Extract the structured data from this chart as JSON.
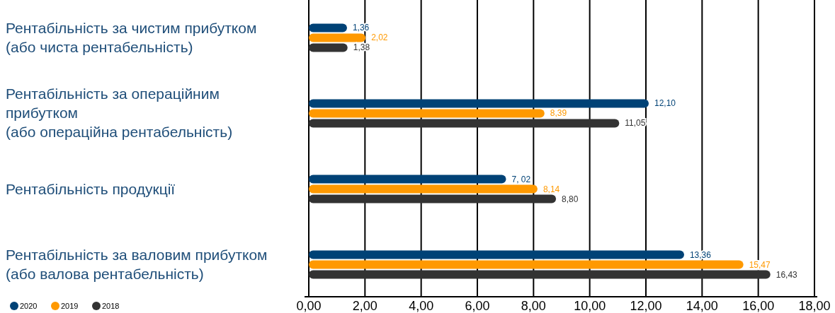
{
  "chart_data": {
    "type": "bar",
    "orientation": "horizontal",
    "categories": [
      "Рентабільність за чистим прибутком\n(або чиста рентабельність)",
      "Рентабільність за операційним\nприбутком\n(або операційна рентабельність)",
      "Рентабільність продукції",
      "Рентабільність за валовим прибутком\n(або валова рентабельність)"
    ],
    "series": [
      {
        "name": "2020",
        "color": "#004276",
        "values": [
          1.36,
          12.1,
          7.02,
          13.36
        ],
        "value_labels": [
          "1,36",
          "12,10",
          "7, 02",
          "13,36"
        ]
      },
      {
        "name": "2019",
        "color": "#ff9900",
        "values": [
          2.02,
          8.39,
          8.14,
          15.47
        ],
        "value_labels": [
          "2,02",
          "8,39",
          "8,14",
          "15,47"
        ]
      },
      {
        "name": "2018",
        "color": "#333333",
        "values": [
          1.38,
          11.05,
          8.8,
          16.43
        ],
        "value_labels": [
          "1,38",
          "11,05",
          "8,80",
          "16,43"
        ]
      }
    ],
    "xlim": [
      0,
      18
    ],
    "xticks": [
      {
        "value": 0,
        "label": "0,00"
      },
      {
        "value": 2,
        "label": "2,00"
      },
      {
        "value": 4,
        "label": "4,00"
      },
      {
        "value": 6,
        "label": "6,00"
      },
      {
        "value": 8,
        "label": "8,00"
      },
      {
        "value": 10,
        "label": "10,00"
      },
      {
        "value": 12,
        "label": "12,00"
      },
      {
        "value": 14,
        "label": "14,00"
      },
      {
        "value": 16,
        "label": "16,00"
      },
      {
        "value": 18,
        "label": "18,00"
      }
    ],
    "grid": "x",
    "legend": "bottom left"
  }
}
